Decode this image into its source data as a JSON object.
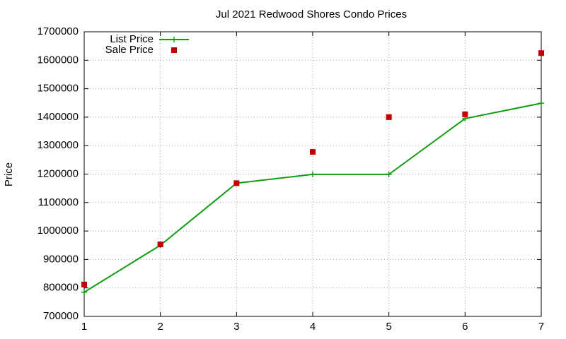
{
  "chart_data": {
    "type": "line",
    "title": "Jul 2021 Redwood Shores Condo Prices",
    "y_label": "Price",
    "x": [
      1,
      2,
      3,
      4,
      5,
      6,
      7
    ],
    "series": [
      {
        "name": "List Price",
        "color": "#109c10",
        "style": "linespoints",
        "values": [
          785000,
          950000,
          1168000,
          1199000,
          1199000,
          1395000,
          1449000
        ]
      },
      {
        "name": "Sale Price",
        "color": "#c00000",
        "style": "points",
        "values": [
          812000,
          953000,
          1168000,
          1278000,
          1400000,
          1410000,
          1625000
        ]
      }
    ],
    "xlim": [
      1,
      7
    ],
    "xticks": [
      1,
      2,
      3,
      4,
      5,
      6,
      7
    ],
    "ylim": [
      700000,
      1700000
    ],
    "yticks": [
      700000,
      800000,
      900000,
      1000000,
      1100000,
      1200000,
      1300000,
      1400000,
      1500000,
      1600000,
      1700000
    ],
    "grid": true,
    "legend": "top-left"
  }
}
